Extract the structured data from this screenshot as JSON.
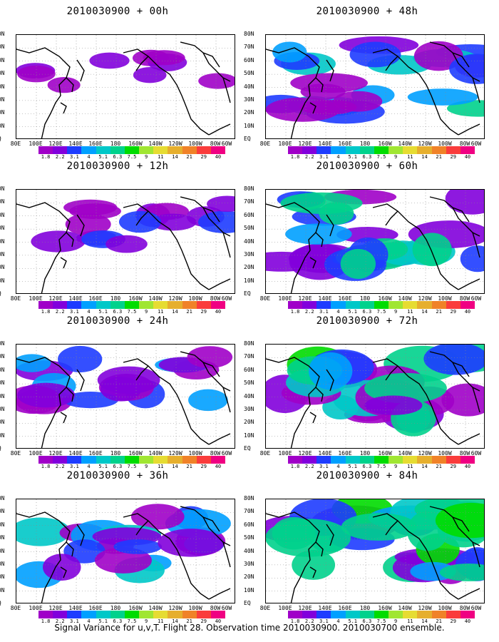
{
  "footer": "Signal Variance for u,v,T. Flight 28. Observation time 2010030900. 2010030700 ensemble.",
  "x_ticks": [
    "80E",
    "100E",
    "120E",
    "140E",
    "160E",
    "180",
    "160W",
    "140W",
    "120W",
    "100W",
    "80W",
    "60W"
  ],
  "y_ticks": [
    "80N",
    "70N",
    "60N",
    "50N",
    "40N",
    "30N",
    "20N",
    "10N",
    "EQ"
  ],
  "colorbar": {
    "labels": [
      "1.8",
      "2.2",
      "3.1",
      "4",
      "5.1",
      "6.3",
      "7.5",
      "9",
      "11",
      "14",
      "21",
      "29",
      "40"
    ],
    "colors": [
      "#a000c8",
      "#8200dc",
      "#1e3cff",
      "#00a0ff",
      "#00c8c8",
      "#00d28c",
      "#00dc00",
      "#a0e632",
      "#e6dc32",
      "#e6af2d",
      "#f08228",
      "#fa3c3c",
      "#f00082"
    ]
  },
  "panels": [
    {
      "title": "2010030900 + 00h"
    },
    {
      "title": "2010030900 + 48h"
    },
    {
      "title": "2010030900 + 12h"
    },
    {
      "title": "2010030900 + 60h"
    },
    {
      "title": "2010030900 + 24h"
    },
    {
      "title": "2010030900 + 72h"
    },
    {
      "title": "2010030900 + 36h"
    },
    {
      "title": "2010030900 + 84h"
    }
  ],
  "chart_data": {
    "type": "heatmap",
    "variable": "Signal Variance for u,v,T",
    "flight": "Flight 28",
    "observation_time": "2010030900",
    "ensemble": "2010030700 ensemble",
    "forecast_hours": [
      "00h",
      "12h",
      "24h",
      "36h",
      "48h",
      "60h",
      "72h",
      "84h"
    ],
    "lon_range": [
      "80E",
      "60W"
    ],
    "lat_range": [
      "EQ",
      "80N"
    ],
    "color_levels": [
      1.8,
      2.2,
      3.1,
      4,
      5.1,
      6.3,
      7.5,
      9,
      11,
      14,
      21,
      29,
      40
    ]
  }
}
